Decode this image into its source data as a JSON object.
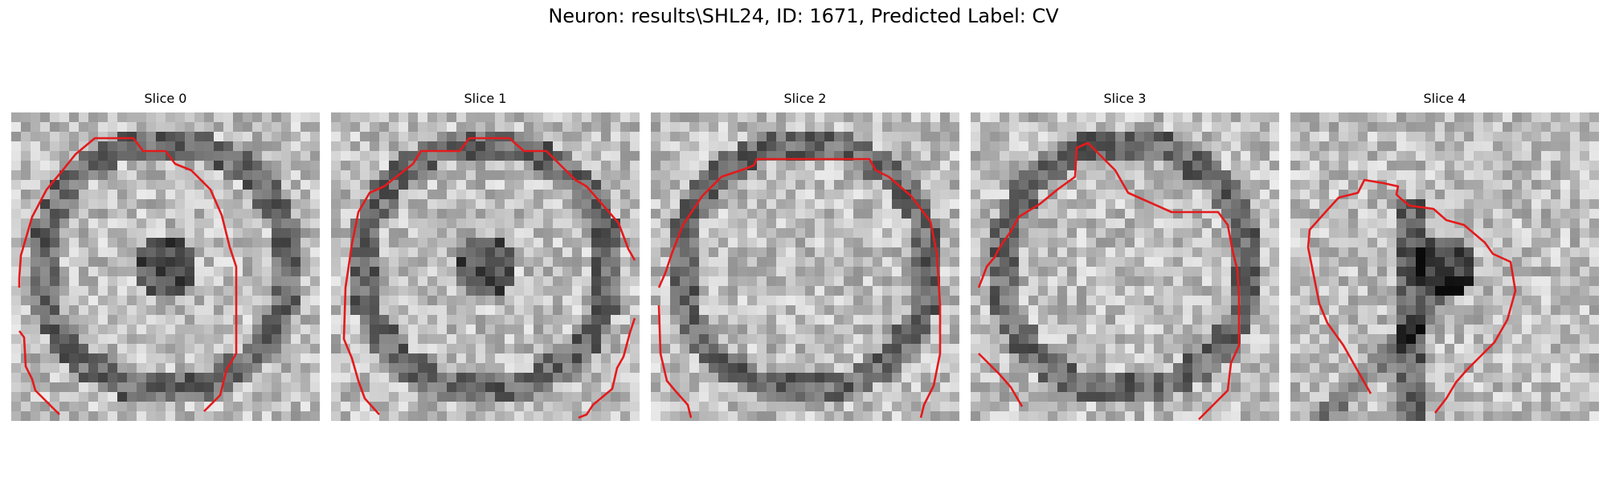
{
  "figure": {
    "title": "Neuron: results\\SHL24, ID: 1671, Predicted Label: CV"
  },
  "colors": {
    "contour": "#e41a1c"
  },
  "panels": [
    {
      "label": "Slice 0",
      "seed": 11,
      "dark_ring": true,
      "inner_dark": true
    },
    {
      "label": "Slice 1",
      "seed": 23,
      "dark_ring": true,
      "inner_dark": true
    },
    {
      "label": "Slice 2",
      "seed": 37,
      "dark_ring": true,
      "inner_dark": false
    },
    {
      "label": "Slice 3",
      "seed": 41,
      "dark_ring": true,
      "inner_dark": false
    },
    {
      "label": "Slice 4",
      "seed": 53,
      "dark_ring": false,
      "inner_dark": true
    }
  ]
}
